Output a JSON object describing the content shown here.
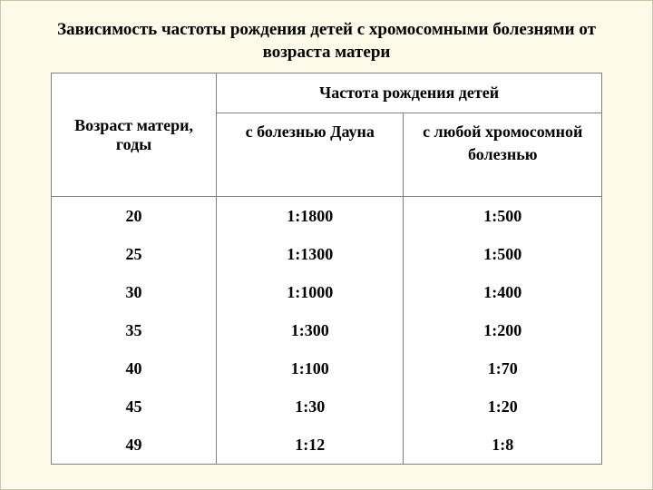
{
  "title": "Зависимость частоты рождения детей с хромосомными болезнями от возраста матери",
  "table": {
    "type": "table",
    "background_color": "#ffffff",
    "border_color": "#808080",
    "header_fontsize": 18,
    "cell_fontsize": 18,
    "font_weight": "bold",
    "columns": {
      "age": "Возраст матери, годы",
      "frequency": "Частота рождения детей",
      "down": "с болезнью Дауна",
      "any": "с любой хромосомной болезнью"
    },
    "column_widths_pct": [
      30,
      34,
      36
    ],
    "rows": [
      {
        "age": "20",
        "down": "1:1800",
        "any": "1:500"
      },
      {
        "age": "25",
        "down": "1:1300",
        "any": "1:500"
      },
      {
        "age": "30",
        "down": "1:1000",
        "any": "1:400"
      },
      {
        "age": "35",
        "down": "1:300",
        "any": "1:200"
      },
      {
        "age": "40",
        "down": "1:100",
        "any": "1:70"
      },
      {
        "age": "45",
        "down": "1:30",
        "any": "1:20"
      },
      {
        "age": "49",
        "down": "1:12",
        "any": "1:8"
      }
    ]
  },
  "page_background": "#fdfae9"
}
